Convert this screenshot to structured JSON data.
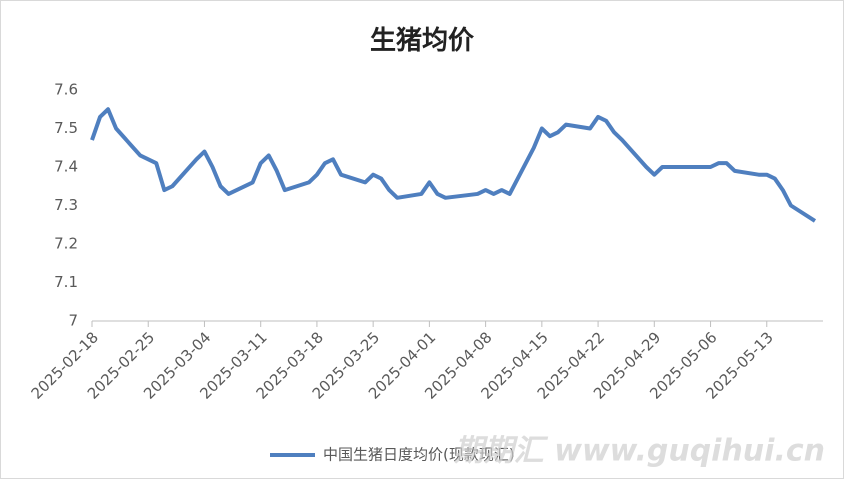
{
  "chart_data": {
    "type": "line",
    "title": "生猪均价",
    "x": [
      "2025-02-18",
      "2025-02-19",
      "2025-02-20",
      "2025-02-21",
      "2025-02-24",
      "2025-02-26",
      "2025-02-27",
      "2025-02-28",
      "2025-03-03",
      "2025-03-04",
      "2025-03-05",
      "2025-03-06",
      "2025-03-07",
      "2025-03-10",
      "2025-03-11",
      "2025-03-12",
      "2025-03-13",
      "2025-03-14",
      "2025-03-17",
      "2025-03-18",
      "2025-03-19",
      "2025-03-20",
      "2025-03-21",
      "2025-03-24",
      "2025-03-25",
      "2025-03-26",
      "2025-03-27",
      "2025-03-28",
      "2025-03-31",
      "2025-04-01",
      "2025-04-02",
      "2025-04-03",
      "2025-04-07",
      "2025-04-08",
      "2025-04-09",
      "2025-04-10",
      "2025-04-11",
      "2025-04-14",
      "2025-04-15",
      "2025-04-16",
      "2025-04-17",
      "2025-04-18",
      "2025-04-21",
      "2025-04-22",
      "2025-04-23",
      "2025-04-24",
      "2025-04-25",
      "2025-04-28",
      "2025-04-29",
      "2025-04-30",
      "2025-05-06",
      "2025-05-07",
      "2025-05-08",
      "2025-05-09",
      "2025-05-12",
      "2025-05-13",
      "2025-05-14",
      "2025-05-15",
      "2025-05-16",
      "2025-05-19"
    ],
    "series": [
      {
        "name": "中国生猪日度均价(现款现汇)",
        "color": "#4f7fbf",
        "values": [
          7.47,
          7.53,
          7.55,
          7.5,
          7.43,
          7.41,
          7.34,
          7.35,
          7.42,
          7.44,
          7.4,
          7.35,
          7.33,
          7.36,
          7.41,
          7.43,
          7.39,
          7.34,
          7.36,
          7.38,
          7.41,
          7.42,
          7.38,
          7.36,
          7.38,
          7.37,
          7.34,
          7.32,
          7.33,
          7.36,
          7.33,
          7.32,
          7.33,
          7.34,
          7.33,
          7.34,
          7.33,
          7.45,
          7.5,
          7.48,
          7.49,
          7.51,
          7.5,
          7.53,
          7.52,
          7.49,
          7.47,
          7.4,
          7.38,
          7.4,
          7.4,
          7.41,
          7.41,
          7.39,
          7.38,
          7.38,
          7.37,
          7.34,
          7.3,
          7.26
        ]
      }
    ],
    "xlim": [
      "2025-02-18",
      "2025-05-20"
    ],
    "xticks": [
      "2025-02-18",
      "2025-02-25",
      "2025-03-04",
      "2025-03-11",
      "2025-03-18",
      "2025-03-25",
      "2025-04-01",
      "2025-04-08",
      "2025-04-15",
      "2025-04-22",
      "2025-04-29",
      "2025-05-06",
      "2025-05-13"
    ],
    "ylim": [
      7,
      7.6
    ],
    "yticks": [
      7,
      7.1,
      7.2,
      7.3,
      7.4,
      7.5,
      7.6
    ],
    "grid": false,
    "legend": "bottom",
    "watermark": "期期汇 www.guqihui.cn"
  }
}
